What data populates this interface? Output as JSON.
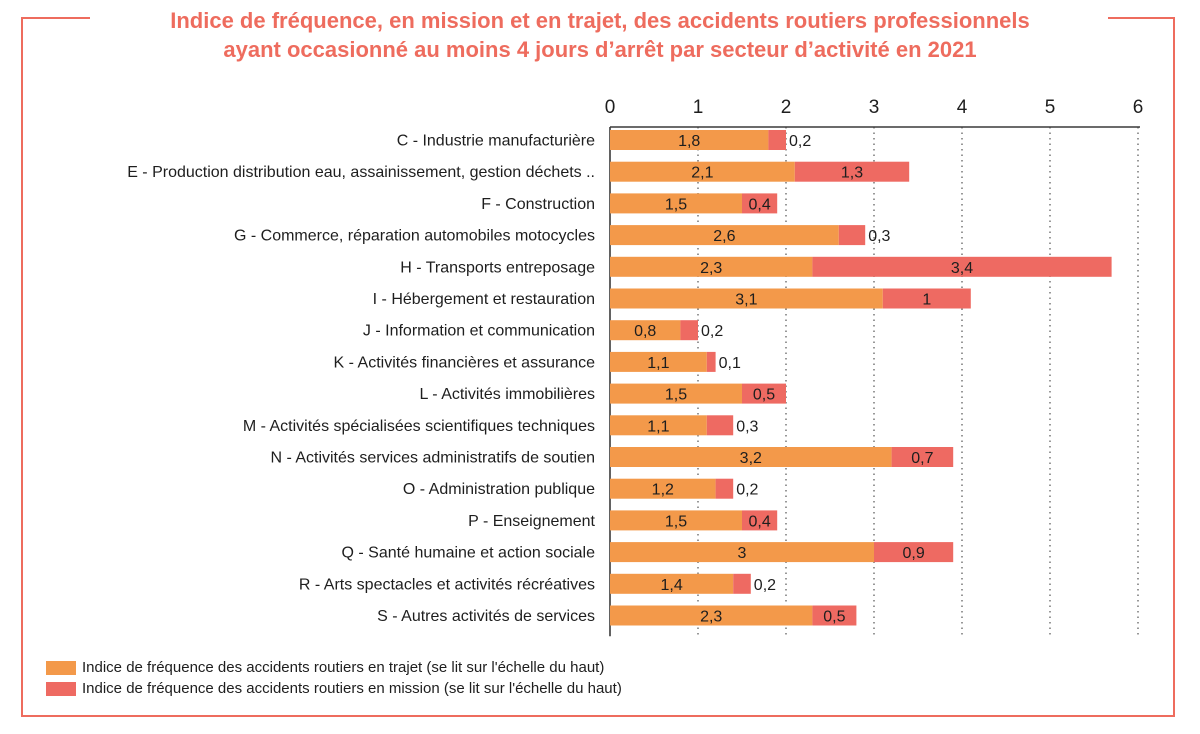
{
  "title": {
    "line1": "Indice de fréquence, en mission et en trajet, des accidents routiers professionnels",
    "line2": "ayant occasionné au moins 4 jours d’arrêt par secteur d’activité en 2021"
  },
  "colors": {
    "frame": "#ee6c5e",
    "title": "#ee6c5e",
    "trajet": "#f3994a",
    "mission": "#ee6a62"
  },
  "chart_data": {
    "type": "bar",
    "orientation": "horizontal",
    "stacked": true,
    "title": "Indice de fréquence, en mission et en trajet, des accidents routiers professionnels ayant occasionné au moins 4 jours d’arrêt par secteur d’activité en 2021",
    "xlim": [
      0,
      6
    ],
    "xticks": [
      "0",
      "1",
      "2",
      "3",
      "4",
      "5",
      "6"
    ],
    "axis_position": "top",
    "grid": "vertical dotted",
    "legend_position": "bottom-left",
    "categories": [
      "C - Industrie manufacturière",
      "E - Production distribution eau, assainissement, gestion déchets ..",
      "F - Construction",
      "G - Commerce, réparation automobiles motocycles",
      "H - Transports entreposage",
      "I - Hébergement et restauration",
      "J - Information et communication",
      "K - Activités financières et assurance",
      "L - Activités immobilières",
      "M - Activités spécialisées scientifiques techniques",
      "N - Activités services administratifs de soutien",
      "O - Administration publique",
      "P - Enseignement",
      "Q - Santé humaine et action sociale",
      "R - Arts spectacles et activités récréatives",
      "S - Autres activités de services"
    ],
    "series": [
      {
        "name": "Indice de fréquence des accidents routiers en trajet (se lit sur l'échelle du haut)",
        "values": [
          1.8,
          2.1,
          1.5,
          2.6,
          2.3,
          3.1,
          0.8,
          1.1,
          1.5,
          1.1,
          3.2,
          1.2,
          1.5,
          3,
          1.4,
          2.3
        ],
        "labels": [
          "1,8",
          "2,1",
          "1,5",
          "2,6",
          "2,3",
          "3,1",
          "0,8",
          "1,1",
          "1,5",
          "1,1",
          "3,2",
          "1,2",
          "1,5",
          "3",
          "1,4",
          "2,3"
        ]
      },
      {
        "name": "Indice de fréquence des accidents routiers en mission (se lit sur l'échelle du haut)",
        "values": [
          0.2,
          1.3,
          0.4,
          0.3,
          3.4,
          1,
          0.2,
          0.1,
          0.5,
          0.3,
          0.7,
          0.2,
          0.4,
          0.9,
          0.2,
          0.5
        ],
        "labels": [
          "0,2",
          "1,3",
          "0,4",
          "0,3",
          "3,4",
          "1",
          "0,2",
          "0,1",
          "0,5",
          "0,3",
          "0,7",
          "0,2",
          "0,4",
          "0,9",
          "0,2",
          "0,5"
        ]
      }
    ]
  }
}
